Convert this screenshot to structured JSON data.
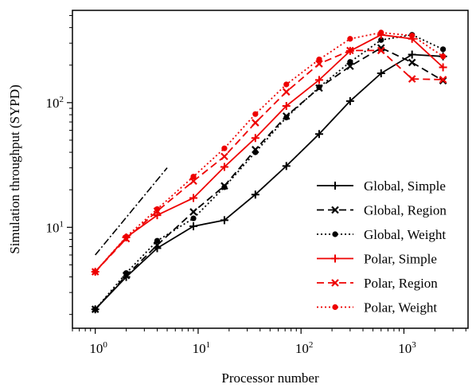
{
  "chart_data": {
    "type": "line",
    "xlabel": "Processor number",
    "ylabel": "Simulation throughput (SYPD)",
    "xscale": "log",
    "yscale": "log",
    "xlim": [
      0.6,
      4200
    ],
    "ylim": [
      1.55,
      550
    ],
    "x_ticks": [
      {
        "value": 1,
        "base": "10",
        "exp": "0"
      },
      {
        "value": 10,
        "base": "10",
        "exp": "1"
      },
      {
        "value": 100,
        "base": "10",
        "exp": "2"
      },
      {
        "value": 1000,
        "base": "10",
        "exp": "3"
      }
    ],
    "y_ticks": [
      {
        "value": 10,
        "base": "10",
        "exp": "1"
      },
      {
        "value": 100,
        "base": "10",
        "exp": "2"
      }
    ],
    "legend_position": "center-right",
    "reference_line": {
      "style": "dashdot",
      "color": "#000000",
      "x": [
        1,
        5
      ],
      "y": [
        6,
        30
      ]
    },
    "series": [
      {
        "name": "Global, Simple",
        "color": "#000000",
        "dash": "",
        "marker": "plus",
        "x": [
          1,
          2,
          4,
          9,
          18,
          36,
          72,
          150,
          300,
          600,
          1200,
          2400
        ],
        "y": [
          2.2,
          4,
          6.8,
          10.2,
          11.4,
          18.3,
          31,
          56,
          103,
          172,
          243,
          235
        ]
      },
      {
        "name": "Global, Region",
        "color": "#000000",
        "dash": "9,5",
        "marker": "x",
        "x": [
          1,
          2,
          4,
          9,
          18,
          36,
          72,
          150,
          300,
          600,
          1200,
          2400
        ],
        "y": [
          2.2,
          4.1,
          7.2,
          13.3,
          21.5,
          42,
          78,
          131,
          196,
          275,
          210,
          150
        ]
      },
      {
        "name": "Global, Weight",
        "color": "#000000",
        "dash": "2,3",
        "marker": "dot",
        "x": [
          1,
          2,
          4,
          9,
          18,
          36,
          72,
          150,
          300,
          600,
          1200,
          2400
        ],
        "y": [
          2.2,
          4.3,
          7.8,
          11.8,
          21,
          40,
          76,
          133,
          212,
          318,
          350,
          268
        ]
      },
      {
        "name": "Polar, Simple",
        "color": "#ee0000",
        "dash": "",
        "marker": "plus",
        "x": [
          1,
          2,
          4,
          9,
          18,
          36,
          72,
          150,
          300,
          600,
          1200,
          2400
        ],
        "y": [
          4.4,
          8.3,
          12.5,
          17.2,
          30.5,
          52,
          94,
          152,
          260,
          350,
          325,
          192
        ]
      },
      {
        "name": "Polar, Region",
        "color": "#ee0000",
        "dash": "9,5",
        "marker": "x",
        "x": [
          1,
          2,
          4,
          9,
          18,
          36,
          72,
          150,
          300,
          600,
          1200,
          2400
        ],
        "y": [
          4.4,
          8.1,
          13.5,
          23.5,
          37,
          69,
          122,
          205,
          262,
          262,
          155,
          153
        ]
      },
      {
        "name": "Polar, Weight",
        "color": "#ee0000",
        "dash": "2,3",
        "marker": "dot",
        "x": [
          1,
          2,
          4,
          9,
          18,
          36,
          72,
          150,
          300,
          600,
          1200,
          2400
        ],
        "y": [
          4.4,
          8.4,
          14,
          25.5,
          43,
          81,
          140,
          222,
          325,
          365,
          345,
          235
        ]
      }
    ]
  }
}
